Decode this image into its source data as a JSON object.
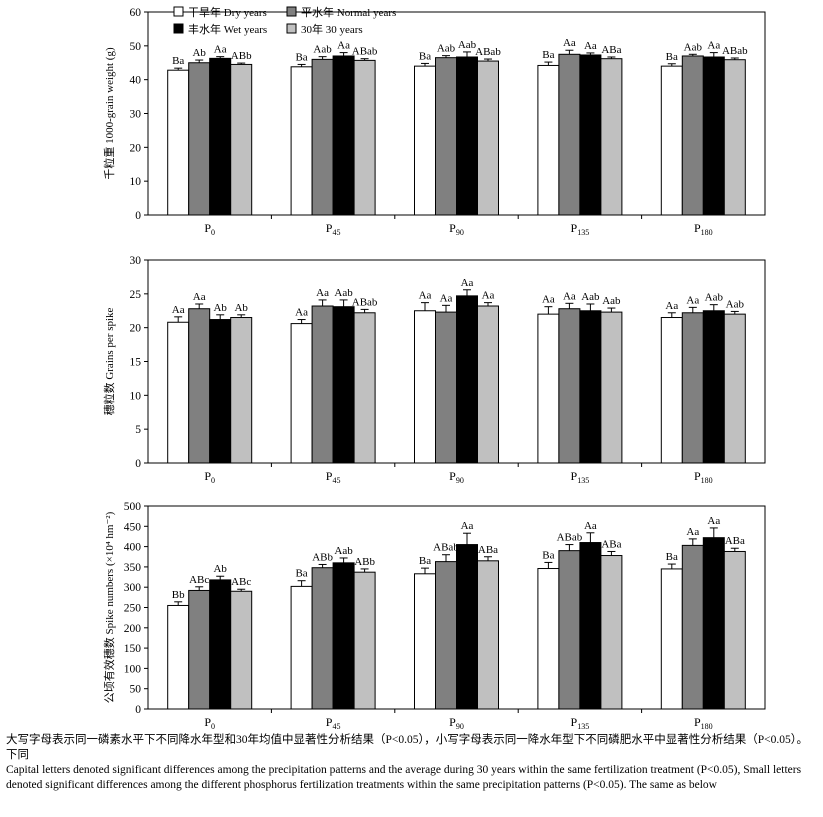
{
  "chart_data": [
    {
      "type": "bar",
      "ylabel": "千粒重 1000-grain weight (g)",
      "ylim": [
        0,
        60
      ],
      "yticks": [
        0,
        10,
        20,
        30,
        40,
        50,
        60
      ],
      "categories": [
        "P",
        "P",
        "P",
        "P",
        "P"
      ],
      "category_subscripts": [
        "0",
        "45",
        "90",
        "135",
        "180"
      ],
      "legend": {
        "position": "top-left",
        "columns": 2
      },
      "series": [
        {
          "name": "干旱年 Dry years",
          "color": "#ffffff",
          "values": [
            42.8,
            43.8,
            44.0,
            44.2,
            44.0
          ],
          "errors": [
            0.6,
            0.7,
            0.8,
            1.0,
            0.7
          ],
          "labels": [
            "Ba",
            "Ba",
            "Ba",
            "Ba",
            "Ba"
          ]
        },
        {
          "name": "平水年 Normal years",
          "color": "#808080",
          "values": [
            45.0,
            46.0,
            46.5,
            47.5,
            47.0
          ],
          "errors": [
            0.8,
            0.8,
            0.6,
            1.2,
            0.5
          ],
          "labels": [
            "Ab",
            "Aab",
            "Aab",
            "Aa",
            "Aab"
          ]
        },
        {
          "name": "丰水年 Wet years",
          "color": "#000000",
          "values": [
            46.3,
            47.0,
            46.7,
            47.3,
            46.7
          ],
          "errors": [
            0.5,
            1.0,
            1.5,
            0.6,
            1.3
          ],
          "labels": [
            "Aa",
            "Aa",
            "Aab",
            "Aa",
            "Aa"
          ]
        },
        {
          "name": "30年 30 years",
          "color": "#c0c0c0",
          "values": [
            44.5,
            45.7,
            45.5,
            46.2,
            45.9
          ],
          "errors": [
            0.4,
            0.5,
            0.6,
            0.5,
            0.5
          ],
          "labels": [
            "ABb",
            "ABab",
            "ABab",
            "ABa",
            "ABab"
          ]
        }
      ]
    },
    {
      "type": "bar",
      "ylabel": "穗粒数 Grains per spike",
      "ylim": [
        0,
        30
      ],
      "yticks": [
        0,
        5,
        10,
        15,
        20,
        25,
        30
      ],
      "categories": [
        "P",
        "P",
        "P",
        "P",
        "P"
      ],
      "category_subscripts": [
        "0",
        "45",
        "90",
        "135",
        "180"
      ],
      "series": [
        {
          "name": "干旱年 Dry years",
          "color": "#ffffff",
          "values": [
            20.8,
            20.6,
            22.5,
            22.0,
            21.5
          ],
          "errors": [
            0.8,
            0.6,
            1.2,
            1.1,
            0.7
          ],
          "labels": [
            "Aa",
            "Aa",
            "Aa",
            "Aa",
            "Aa"
          ]
        },
        {
          "name": "平水年 Normal years",
          "color": "#808080",
          "values": [
            22.8,
            23.2,
            22.3,
            22.8,
            22.2
          ],
          "errors": [
            0.7,
            0.9,
            1.0,
            0.8,
            0.8
          ],
          "labels": [
            "Aa",
            "Aa",
            "Aa",
            "Aa",
            "Aa"
          ]
        },
        {
          "name": "丰水年 Wet years",
          "color": "#000000",
          "values": [
            21.2,
            23.1,
            24.7,
            22.5,
            22.5
          ],
          "errors": [
            0.7,
            1.0,
            0.9,
            1.0,
            0.9
          ],
          "labels": [
            "Ab",
            "Aab",
            "Aa",
            "Aab",
            "Aab"
          ]
        },
        {
          "name": "30年 30 years",
          "color": "#c0c0c0",
          "values": [
            21.5,
            22.2,
            23.2,
            22.3,
            22.0
          ],
          "errors": [
            0.4,
            0.5,
            0.5,
            0.6,
            0.4
          ],
          "labels": [
            "Ab",
            "ABab",
            "Aa",
            "Aab",
            "Aab"
          ]
        }
      ]
    },
    {
      "type": "bar",
      "ylabel": "公顷有效穗数 Spike numbers (×10⁴ hm⁻²)",
      "ylim": [
        0,
        500
      ],
      "yticks": [
        0,
        50,
        100,
        150,
        200,
        250,
        300,
        350,
        400,
        450,
        500
      ],
      "categories": [
        "P",
        "P",
        "P",
        "P",
        "P"
      ],
      "category_subscripts": [
        "0",
        "45",
        "90",
        "135",
        "180"
      ],
      "series": [
        {
          "name": "干旱年 Dry years",
          "color": "#ffffff",
          "values": [
            255,
            302,
            333,
            346,
            345
          ],
          "errors": [
            9,
            14,
            14,
            15,
            12
          ],
          "labels": [
            "Bb",
            "Ba",
            "Ba",
            "Ba",
            "Ba"
          ]
        },
        {
          "name": "平水年 Normal years",
          "color": "#808080",
          "values": [
            292,
            348,
            363,
            390,
            403
          ],
          "errors": [
            9,
            8,
            17,
            15,
            16
          ],
          "labels": [
            "ABc",
            "ABb",
            "ABab",
            "ABab",
            "Aa"
          ]
        },
        {
          "name": "丰水年 Wet years",
          "color": "#000000",
          "values": [
            318,
            360,
            405,
            410,
            422
          ],
          "errors": [
            9,
            12,
            28,
            24,
            24
          ],
          "labels": [
            "Ab",
            "Aab",
            "Aa",
            "Aa",
            "Aa"
          ]
        },
        {
          "name": "30年 30 years",
          "color": "#c0c0c0",
          "values": [
            290,
            337,
            365,
            378,
            388
          ],
          "errors": [
            5,
            8,
            10,
            10,
            8
          ],
          "labels": [
            "ABc",
            "ABb",
            "ABa",
            "ABa",
            "ABa"
          ]
        }
      ]
    }
  ],
  "caption": {
    "cn": "大写字母表示同一磷素水平下不同降水年型和30年均值中显著性分析结果（P<0.05），小写字母表示同一降水年型下不同磷肥水平中显著性分析结果（P<0.05）。下同",
    "en": "Capital letters denoted significant differences among the precipitation patterns and the average during 30 years within the same fertilization treatment (P<0.05), Small letters denoted significant differences among the different phosphorus fertilization treatments within the same precipitation patterns (P<0.05). The same as below"
  }
}
